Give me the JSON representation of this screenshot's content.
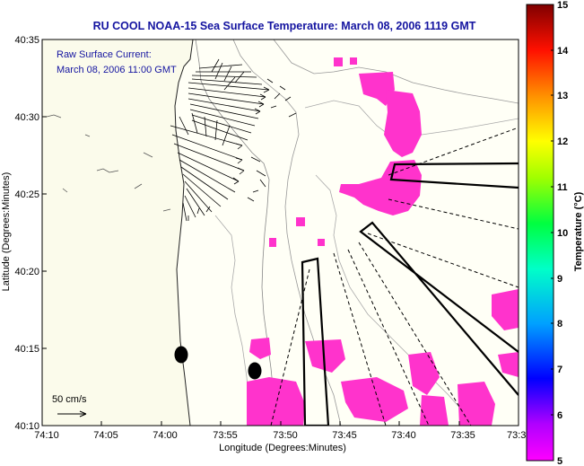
{
  "chart_data": {
    "type": "heatmap",
    "title": "RU COOL   NOAA-15  Sea Surface Temperature:  March 08, 2006 1119 GMT",
    "annotation": [
      "Raw Surface Current:",
      "March 08, 2006 11:00 GMT"
    ],
    "xlabel": "Longitude (Degrees:Minutes)",
    "ylabel": "Latitude (Degrees:Minutes)",
    "x_ticks": [
      "74:10",
      "74:05",
      "74:00",
      "73:55",
      "73:50",
      "73:45",
      "73:40",
      "73:35",
      "73:3"
    ],
    "y_ticks": [
      "40:35",
      "40:30",
      "40:25",
      "40:20",
      "40:15",
      "40:10"
    ],
    "xlim": [
      "74:10 W",
      "73:30 W"
    ],
    "ylim": [
      "40:10 N",
      "40:35 N"
    ],
    "scale_label": "50 cm/s",
    "colorbar": {
      "label": "Temperature (°C)",
      "ticks": [
        "5",
        "6",
        "7",
        "8",
        "9",
        "10",
        "11",
        "12",
        "13",
        "14",
        "15"
      ],
      "range": [
        5,
        15
      ],
      "colors": [
        "#ff00ff",
        "#0000ff",
        "#00c8ff",
        "#00ff66",
        "#ffff00",
        "#ff8800",
        "#ff0000",
        "#800000"
      ]
    },
    "sst_observed_color": "#ff33cc",
    "sst_observed_value_c": 5,
    "grid": false,
    "legend": "right colorbar"
  }
}
